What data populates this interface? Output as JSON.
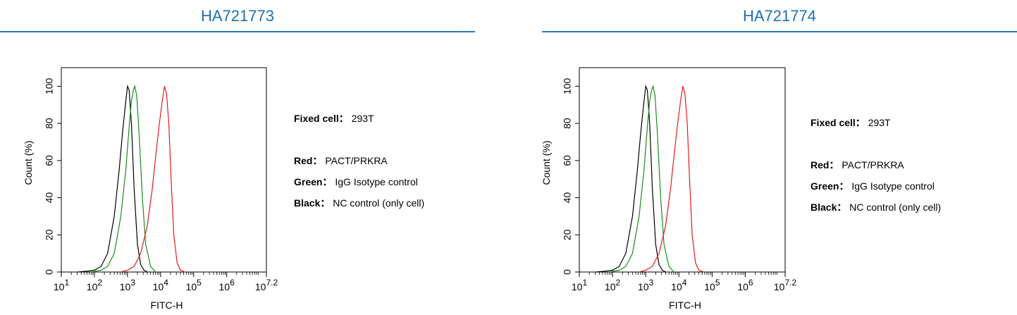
{
  "panels": [
    {
      "title": "HA721773",
      "legend": {
        "fixed_key": "Fixed cell：",
        "fixed_val": "293T",
        "red_key": "Red：",
        "red_val": "PACT/PRKRA",
        "green_key": "Green：",
        "green_val": "IgG Isotype control",
        "black_key": "Black：",
        "black_val": "NC control (only cell)"
      }
    },
    {
      "title": "HA721774",
      "legend": {
        "fixed_key": "Fixed cell：",
        "fixed_val": "293T",
        "red_key": "Red：",
        "red_val": "PACT/PRKRA",
        "green_key": "Green：",
        "green_val": "IgG Isotype control",
        "black_key": "Black：",
        "black_val": "NC control (only cell)"
      }
    }
  ],
  "chart_data": [
    {
      "type": "line",
      "title": "HA721773",
      "xlabel": "FITC-H",
      "ylabel": "Count  (%)",
      "x_scale": "log10",
      "xlim": [
        1,
        7.2
      ],
      "ylim": [
        0,
        110
      ],
      "x_ticks": [
        "1",
        "2",
        "3",
        "4",
        "5",
        "6",
        "7.2"
      ],
      "y_ticks": [
        0,
        20,
        40,
        60,
        80,
        100
      ],
      "series": [
        {
          "color": "#000000",
          "x": [
            1.5,
            1.8,
            2.0,
            2.2,
            2.4,
            2.6,
            2.75,
            2.85,
            2.95,
            3.0,
            3.05,
            3.12,
            3.2,
            3.3,
            3.4,
            3.5,
            3.6
          ],
          "y": [
            0,
            0.5,
            1,
            3,
            10,
            30,
            55,
            75,
            92,
            100,
            98,
            80,
            45,
            15,
            4,
            1,
            0
          ]
        },
        {
          "color": "#1a8a1a",
          "x": [
            1.9,
            2.2,
            2.4,
            2.6,
            2.8,
            2.95,
            3.05,
            3.12,
            3.18,
            3.22,
            3.28,
            3.35,
            3.45,
            3.55,
            3.7,
            3.85
          ],
          "y": [
            0,
            1,
            3,
            10,
            30,
            55,
            78,
            92,
            98,
            100,
            95,
            75,
            40,
            15,
            3,
            0
          ]
        },
        {
          "color": "#e31a1a",
          "x": [
            2.8,
            3.0,
            3.2,
            3.4,
            3.6,
            3.75,
            3.85,
            3.95,
            4.05,
            4.12,
            4.18,
            4.25,
            4.32,
            4.4,
            4.5,
            4.6,
            4.75
          ],
          "y": [
            0,
            1,
            3,
            10,
            25,
            45,
            62,
            78,
            92,
            100,
            96,
            80,
            50,
            20,
            5,
            1,
            0
          ]
        }
      ]
    },
    {
      "type": "line",
      "title": "HA721774",
      "xlabel": "FITC-H",
      "ylabel": "Count  (%)",
      "x_scale": "log10",
      "xlim": [
        1,
        7.2
      ],
      "ylim": [
        0,
        110
      ],
      "x_ticks": [
        "1",
        "2",
        "3",
        "4",
        "5",
        "6",
        "7.2"
      ],
      "y_ticks": [
        0,
        20,
        40,
        60,
        80,
        100
      ],
      "series": [
        {
          "color": "#000000",
          "x": [
            1.5,
            1.8,
            2.0,
            2.2,
            2.4,
            2.6,
            2.75,
            2.85,
            2.95,
            3.0,
            3.05,
            3.12,
            3.2,
            3.3,
            3.4,
            3.5,
            3.6
          ],
          "y": [
            0,
            0.5,
            1,
            3,
            10,
            30,
            55,
            75,
            92,
            100,
            98,
            80,
            45,
            15,
            4,
            1,
            0
          ]
        },
        {
          "color": "#1a8a1a",
          "x": [
            1.9,
            2.2,
            2.4,
            2.6,
            2.8,
            2.95,
            3.05,
            3.12,
            3.18,
            3.22,
            3.28,
            3.35,
            3.45,
            3.55,
            3.7,
            3.85
          ],
          "y": [
            0,
            1,
            3,
            10,
            30,
            55,
            78,
            92,
            98,
            100,
            95,
            75,
            40,
            15,
            3,
            0
          ]
        },
        {
          "color": "#e31a1a",
          "x": [
            2.8,
            3.0,
            3.2,
            3.4,
            3.6,
            3.75,
            3.85,
            3.95,
            4.05,
            4.12,
            4.18,
            4.25,
            4.32,
            4.4,
            4.5,
            4.6,
            4.75
          ],
          "y": [
            0,
            1,
            3,
            10,
            25,
            45,
            62,
            78,
            92,
            100,
            96,
            80,
            50,
            20,
            5,
            1,
            0
          ]
        }
      ]
    }
  ]
}
